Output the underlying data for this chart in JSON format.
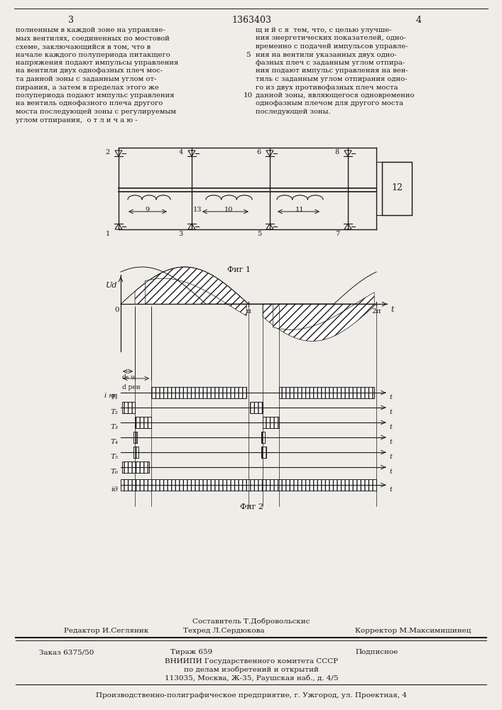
{
  "page_color": "#f0ede8",
  "text_color": "#1a1a1a",
  "title": "1363403",
  "page_nums": [
    "3",
    "4"
  ],
  "left_text": "полненным в каждой зоне на управляе-\nмых вентилях, соединенных по мостовой\nсхеме, заключающийся в том, что в\nначале каждого полупериода питакщего\nнапряжения подают импульсы управления\nна вентили двух однофазных плеч мос-\nта данной зоны с заданным углом от-\nпирания, а затем в пределах этого же\nполупериода подают импульс управления\nна вентиль однофазного плеча другого\nмоста последующей зоны с регулируемым\nуглом отпирания,  о т л и ч а ю -",
  "right_text": "щ и й с я  тем, что, с целью улучше-\nния энергетических показателей, одно-\nвременно с подачей импульсов управле-\nния на вентили указанных двух одно-\nфазных плеч с заданным углом отпира-\nния подают импульс управления на вен-\nтиль с заданным углом отпирания одно-\nго из двух противофазных плеч моста\nданной зоны, являющегося одновременно\nоднофазным плечом для другого моста\nпоследующей зоны.",
  "fig1_caption": "Фиг 1",
  "fig2_caption": "Фиг 2",
  "footer_composer": "Составитель Т.Добровольскис",
  "footer_editor": "Редактор И.Сегляник",
  "footer_tech": "Техред Л.Сердюкова",
  "footer_corrector": "Корректор М.Максимишинец",
  "footer_order": "Заказ 6375/50",
  "footer_circulation": "Тираж 659",
  "footer_subscription": "Подписное",
  "footer_vniip": "ВНИИПИ Государственного комитета СССР",
  "footer_affairs": "по делам изобретений и открытий",
  "footer_address": "113035, Москва, Ж-35, Раушская наб., д. 4/5",
  "footer_bottom": "Производственно-полиграфическое предприятие, г. Ужгород, ул. Проектная, 4"
}
